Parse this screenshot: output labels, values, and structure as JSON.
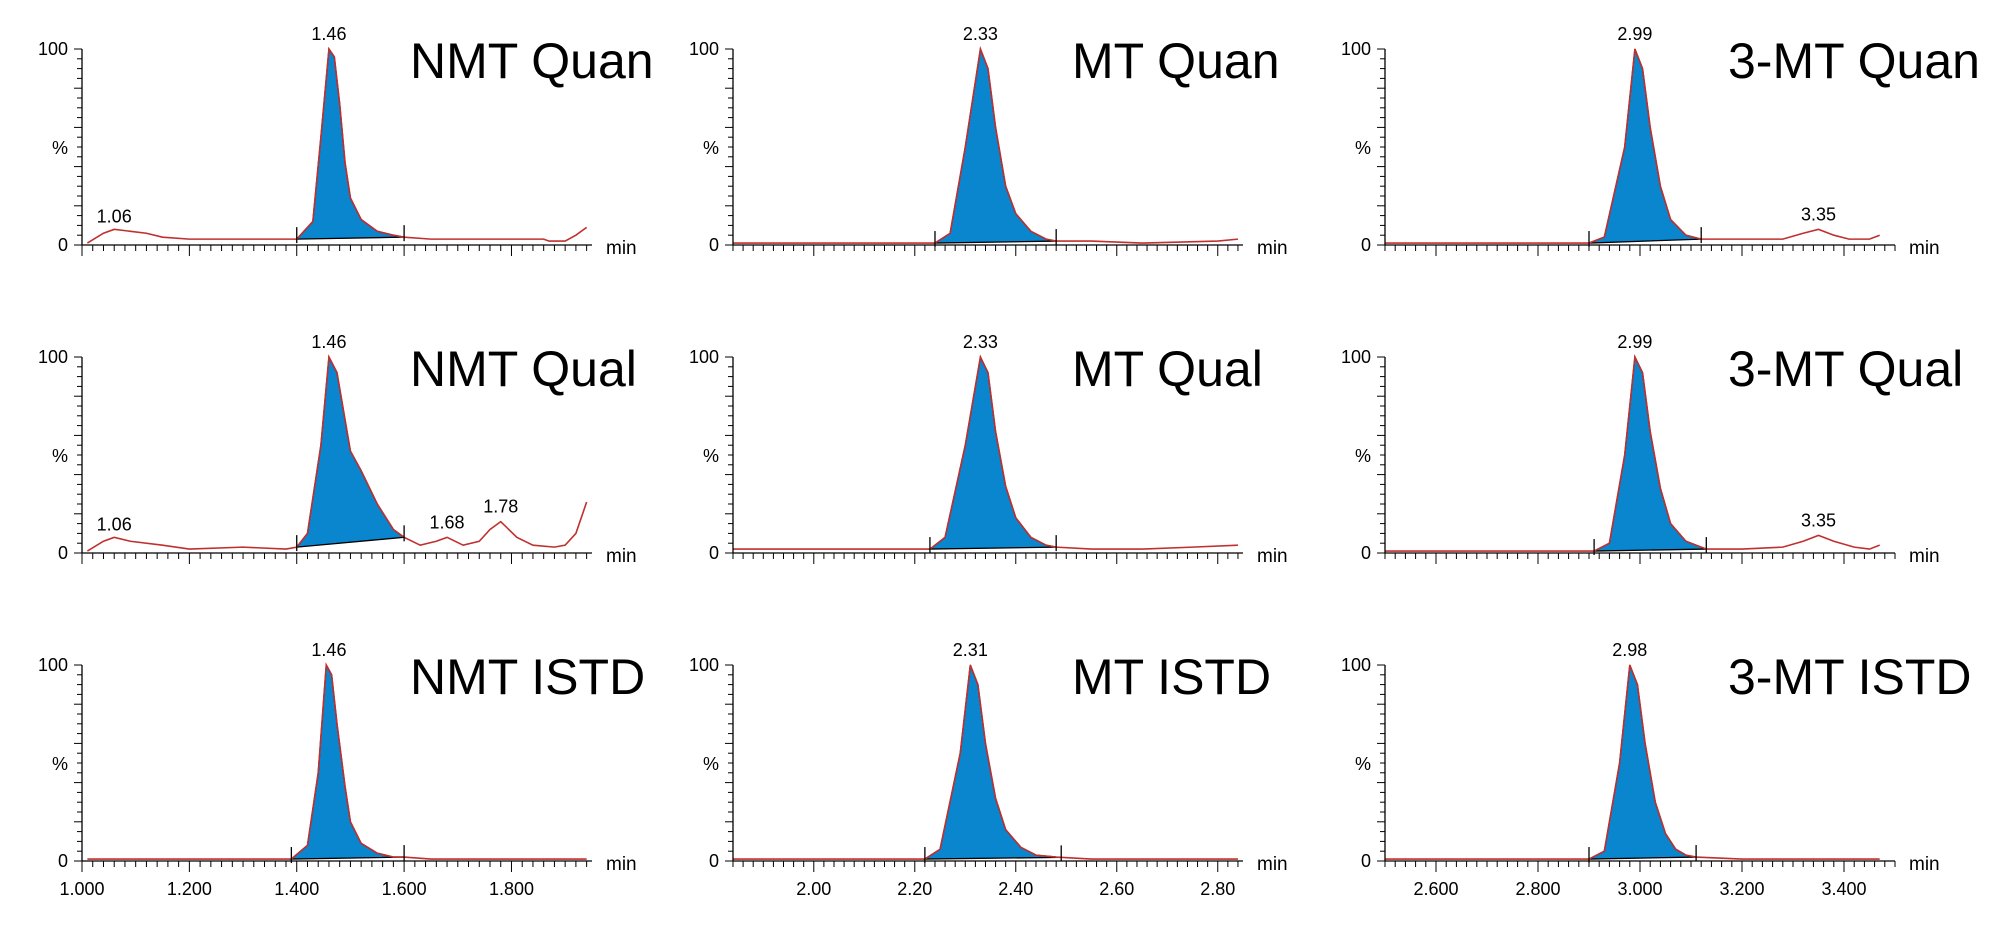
{
  "chart_data": {
    "type": "area",
    "colors": {
      "peak_fill": "#0a86cf",
      "trace": "#c0302f",
      "axis": "#000000"
    },
    "y_ticks": [
      "0",
      "%",
      "100"
    ],
    "x_unit": "min",
    "columns": [
      {
        "xlim": [
          1.0,
          1.95
        ],
        "x_ticks": [
          "1.000",
          "1.200",
          "1.400",
          "1.600",
          "1.800"
        ],
        "x_tick_values": [
          1.0,
          1.2,
          1.4,
          1.6,
          1.8
        ],
        "panels": [
          {
            "title": "NMT Quan",
            "peak_apex": 1.46,
            "integration_window": [
              1.4,
              1.6
            ],
            "peak_labels": [
              {
                "text": "1.06",
                "x": 1.06,
                "y": 7
              },
              {
                "text": "1.46",
                "x": 1.46,
                "y": 100
              }
            ],
            "trace": [
              [
                1.01,
                1
              ],
              [
                1.04,
                6
              ],
              [
                1.06,
                8
              ],
              [
                1.09,
                7
              ],
              [
                1.12,
                6
              ],
              [
                1.15,
                4
              ],
              [
                1.2,
                3
              ],
              [
                1.3,
                3
              ],
              [
                1.38,
                3
              ],
              [
                1.4,
                3
              ],
              [
                1.43,
                12
              ],
              [
                1.445,
                55
              ],
              [
                1.46,
                100
              ],
              [
                1.47,
                96
              ],
              [
                1.48,
                72
              ],
              [
                1.49,
                42
              ],
              [
                1.5,
                24
              ],
              [
                1.52,
                13
              ],
              [
                1.55,
                7
              ],
              [
                1.58,
                5
              ],
              [
                1.6,
                4
              ],
              [
                1.65,
                3
              ],
              [
                1.75,
                3
              ],
              [
                1.86,
                3
              ],
              [
                1.87,
                2
              ],
              [
                1.9,
                2
              ],
              [
                1.92,
                5
              ],
              [
                1.94,
                9
              ]
            ]
          },
          {
            "title": "NMT Qual",
            "peak_apex": 1.46,
            "integration_window": [
              1.4,
              1.6
            ],
            "peak_labels": [
              {
                "text": "1.06",
                "x": 1.06,
                "y": 7
              },
              {
                "text": "1.46",
                "x": 1.46,
                "y": 100
              },
              {
                "text": "1.68",
                "x": 1.68,
                "y": 8
              },
              {
                "text": "1.78",
                "x": 1.78,
                "y": 16
              }
            ],
            "trace": [
              [
                1.01,
                1
              ],
              [
                1.04,
                6
              ],
              [
                1.06,
                8
              ],
              [
                1.09,
                6
              ],
              [
                1.15,
                4
              ],
              [
                1.2,
                2
              ],
              [
                1.3,
                3
              ],
              [
                1.38,
                2
              ],
              [
                1.4,
                3
              ],
              [
                1.42,
                10
              ],
              [
                1.445,
                55
              ],
              [
                1.46,
                100
              ],
              [
                1.475,
                92
              ],
              [
                1.49,
                68
              ],
              [
                1.5,
                52
              ],
              [
                1.52,
                42
              ],
              [
                1.55,
                25
              ],
              [
                1.58,
                12
              ],
              [
                1.6,
                8
              ],
              [
                1.63,
                4
              ],
              [
                1.66,
                6
              ],
              [
                1.68,
                8
              ],
              [
                1.71,
                4
              ],
              [
                1.74,
                6
              ],
              [
                1.76,
                12
              ],
              [
                1.78,
                16
              ],
              [
                1.81,
                8
              ],
              [
                1.84,
                4
              ],
              [
                1.88,
                3
              ],
              [
                1.9,
                4
              ],
              [
                1.92,
                10
              ],
              [
                1.94,
                26
              ]
            ]
          },
          {
            "title": "NMT ISTD",
            "peak_apex": 1.46,
            "integration_window": [
              1.39,
              1.6
            ],
            "peak_labels": [
              {
                "text": "1.46",
                "x": 1.46,
                "y": 100
              }
            ],
            "trace": [
              [
                1.01,
                1
              ],
              [
                1.1,
                1
              ],
              [
                1.2,
                1
              ],
              [
                1.3,
                1
              ],
              [
                1.39,
                1
              ],
              [
                1.42,
                8
              ],
              [
                1.44,
                45
              ],
              [
                1.455,
                100
              ],
              [
                1.465,
                95
              ],
              [
                1.475,
                70
              ],
              [
                1.49,
                38
              ],
              [
                1.5,
                20
              ],
              [
                1.52,
                9
              ],
              [
                1.55,
                4
              ],
              [
                1.58,
                2
              ],
              [
                1.6,
                2
              ],
              [
                1.65,
                1
              ],
              [
                1.8,
                1
              ],
              [
                1.94,
                1
              ]
            ]
          }
        ]
      },
      {
        "xlim": [
          1.84,
          2.85
        ],
        "x_ticks": [
          "2.00",
          "2.20",
          "2.40",
          "2.60",
          "2.80"
        ],
        "x_tick_values": [
          2.0,
          2.2,
          2.4,
          2.6,
          2.8
        ],
        "panels": [
          {
            "title": "MT Quan",
            "peak_apex": 2.33,
            "integration_window": [
              2.24,
              2.48
            ],
            "peak_labels": [
              {
                "text": "2.33",
                "x": 2.33,
                "y": 100
              }
            ],
            "trace": [
              [
                1.84,
                1
              ],
              [
                2.0,
                1
              ],
              [
                2.1,
                1
              ],
              [
                2.2,
                1
              ],
              [
                2.24,
                1
              ],
              [
                2.27,
                6
              ],
              [
                2.3,
                50
              ],
              [
                2.33,
                100
              ],
              [
                2.345,
                90
              ],
              [
                2.36,
                60
              ],
              [
                2.38,
                30
              ],
              [
                2.4,
                16
              ],
              [
                2.43,
                7
              ],
              [
                2.46,
                3
              ],
              [
                2.48,
                2
              ],
              [
                2.55,
                2
              ],
              [
                2.65,
                1
              ],
              [
                2.8,
                2
              ],
              [
                2.84,
                3
              ]
            ]
          },
          {
            "title": "MT Qual",
            "peak_apex": 2.33,
            "integration_window": [
              2.23,
              2.48
            ],
            "peak_labels": [
              {
                "text": "2.33",
                "x": 2.33,
                "y": 100
              }
            ],
            "trace": [
              [
                1.84,
                2
              ],
              [
                2.0,
                2
              ],
              [
                2.1,
                2
              ],
              [
                2.2,
                2
              ],
              [
                2.23,
                2
              ],
              [
                2.26,
                8
              ],
              [
                2.3,
                55
              ],
              [
                2.33,
                100
              ],
              [
                2.345,
                92
              ],
              [
                2.36,
                62
              ],
              [
                2.38,
                34
              ],
              [
                2.4,
                18
              ],
              [
                2.43,
                8
              ],
              [
                2.46,
                4
              ],
              [
                2.48,
                3
              ],
              [
                2.55,
                2
              ],
              [
                2.65,
                2
              ],
              [
                2.75,
                3
              ],
              [
                2.84,
                4
              ]
            ]
          },
          {
            "title": "MT ISTD",
            "peak_apex": 2.31,
            "integration_window": [
              2.22,
              2.49
            ],
            "peak_labels": [
              {
                "text": "2.31",
                "x": 2.31,
                "y": 100
              }
            ],
            "trace": [
              [
                1.84,
                1
              ],
              [
                2.0,
                1
              ],
              [
                2.1,
                1
              ],
              [
                2.22,
                1
              ],
              [
                2.25,
                6
              ],
              [
                2.29,
                55
              ],
              [
                2.31,
                100
              ],
              [
                2.325,
                90
              ],
              [
                2.34,
                60
              ],
              [
                2.36,
                32
              ],
              [
                2.38,
                16
              ],
              [
                2.41,
                7
              ],
              [
                2.44,
                3
              ],
              [
                2.48,
                2
              ],
              [
                2.55,
                1
              ],
              [
                2.7,
                1
              ],
              [
                2.84,
                1
              ]
            ]
          }
        ]
      },
      {
        "xlim": [
          2.5,
          3.5
        ],
        "x_ticks": [
          "2.600",
          "2.800",
          "3.000",
          "3.200",
          "3.400"
        ],
        "x_tick_values": [
          2.6,
          2.8,
          3.0,
          3.2,
          3.4
        ],
        "panels": [
          {
            "title": "3-MT Quan",
            "peak_apex": 2.99,
            "integration_window": [
              2.9,
              3.12
            ],
            "peak_labels": [
              {
                "text": "2.99",
                "x": 2.99,
                "y": 100
              },
              {
                "text": "3.35",
                "x": 3.35,
                "y": 8
              }
            ],
            "trace": [
              [
                2.5,
                1
              ],
              [
                2.7,
                1
              ],
              [
                2.85,
                1
              ],
              [
                2.9,
                1
              ],
              [
                2.93,
                4
              ],
              [
                2.97,
                50
              ],
              [
                2.99,
                100
              ],
              [
                3.005,
                90
              ],
              [
                3.02,
                60
              ],
              [
                3.04,
                30
              ],
              [
                3.06,
                13
              ],
              [
                3.09,
                5
              ],
              [
                3.12,
                3
              ],
              [
                3.2,
                3
              ],
              [
                3.28,
                3
              ],
              [
                3.32,
                6
              ],
              [
                3.35,
                8
              ],
              [
                3.38,
                5
              ],
              [
                3.41,
                3
              ],
              [
                3.45,
                3
              ],
              [
                3.47,
                5
              ]
            ]
          },
          {
            "title": "3-MT Qual",
            "peak_apex": 2.99,
            "integration_window": [
              2.91,
              3.13
            ],
            "peak_labels": [
              {
                "text": "2.99",
                "x": 2.99,
                "y": 100
              },
              {
                "text": "3.35",
                "x": 3.35,
                "y": 9
              }
            ],
            "trace": [
              [
                2.5,
                1
              ],
              [
                2.7,
                1
              ],
              [
                2.85,
                1
              ],
              [
                2.91,
                1
              ],
              [
                2.94,
                5
              ],
              [
                2.97,
                50
              ],
              [
                2.99,
                100
              ],
              [
                3.005,
                92
              ],
              [
                3.02,
                62
              ],
              [
                3.04,
                33
              ],
              [
                3.06,
                15
              ],
              [
                3.09,
                6
              ],
              [
                3.13,
                2
              ],
              [
                3.2,
                2
              ],
              [
                3.28,
                3
              ],
              [
                3.32,
                6
              ],
              [
                3.35,
                9
              ],
              [
                3.38,
                6
              ],
              [
                3.42,
                3
              ],
              [
                3.45,
                2
              ],
              [
                3.47,
                4
              ]
            ]
          },
          {
            "title": "3-MT ISTD",
            "peak_apex": 2.98,
            "integration_window": [
              2.9,
              3.11
            ],
            "peak_labels": [
              {
                "text": "2.98",
                "x": 2.98,
                "y": 100
              }
            ],
            "trace": [
              [
                2.5,
                1
              ],
              [
                2.7,
                1
              ],
              [
                2.85,
                1
              ],
              [
                2.9,
                1
              ],
              [
                2.93,
                5
              ],
              [
                2.96,
                50
              ],
              [
                2.98,
                100
              ],
              [
                2.995,
                90
              ],
              [
                3.01,
                60
              ],
              [
                3.03,
                30
              ],
              [
                3.05,
                14
              ],
              [
                3.07,
                6
              ],
              [
                3.09,
                3
              ],
              [
                3.11,
                2
              ],
              [
                3.2,
                1
              ],
              [
                3.35,
                1
              ],
              [
                3.47,
                1
              ]
            ]
          }
        ]
      }
    ]
  }
}
